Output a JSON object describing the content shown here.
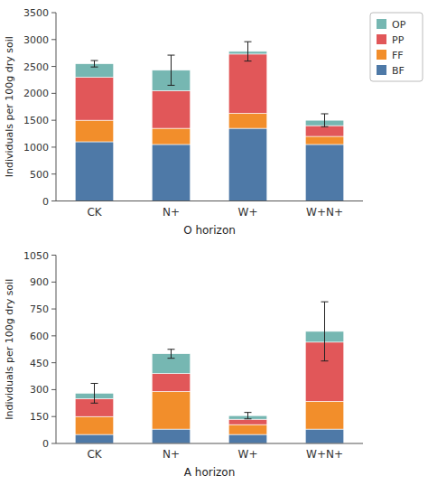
{
  "chart_data": [
    {
      "type": "bar",
      "stacked": true,
      "categories": [
        "CK",
        "N+",
        "W+",
        "W+N+"
      ],
      "series": [
        {
          "name": "BF",
          "values": [
            1100,
            1050,
            1350,
            1050
          ]
        },
        {
          "name": "FF",
          "values": [
            400,
            300,
            280,
            150
          ]
        },
        {
          "name": "PP",
          "values": [
            800,
            700,
            1100,
            200
          ]
        },
        {
          "name": "OP",
          "values": [
            250,
            380,
            50,
            100
          ]
        }
      ],
      "total_errors": [
        60,
        280,
        180,
        120
      ],
      "xlabel": "O horizon",
      "ylabel": "Individuals per 100g dry soil",
      "ylim": [
        0,
        3500
      ],
      "yticks": [
        0,
        500,
        1000,
        1500,
        2000,
        2500,
        3000,
        3500
      ],
      "legend": "upper right"
    },
    {
      "type": "bar",
      "stacked": true,
      "categories": [
        "CK",
        "N+",
        "W+",
        "W+N+"
      ],
      "series": [
        {
          "name": "BF",
          "values": [
            50,
            80,
            50,
            80
          ]
        },
        {
          "name": "FF",
          "values": [
            100,
            210,
            55,
            155
          ]
        },
        {
          "name": "PP",
          "values": [
            100,
            100,
            30,
            330
          ]
        },
        {
          "name": "OP",
          "values": [
            30,
            110,
            20,
            60
          ]
        }
      ],
      "total_errors": [
        55,
        25,
        18,
        165
      ],
      "xlabel": "A horizon",
      "ylabel": "Individuals per 100g dry soil",
      "ylim": [
        0,
        1050
      ],
      "yticks": [
        0,
        150,
        300,
        450,
        600,
        750,
        900,
        1050
      ]
    }
  ]
}
